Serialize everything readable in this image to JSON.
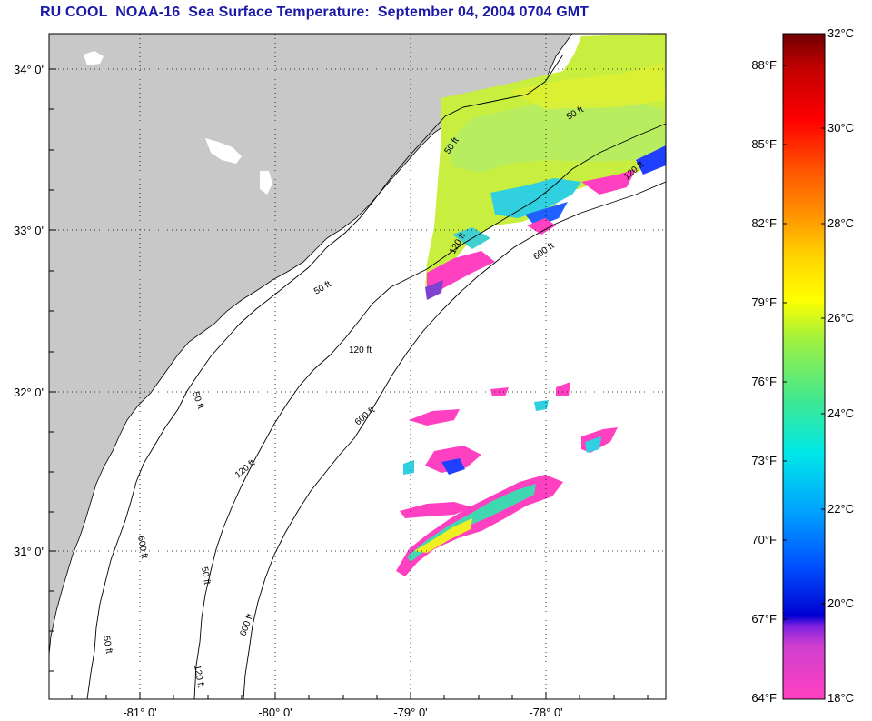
{
  "title": "RU COOL  NOAA-16  Sea Surface Temperature:  September 04, 2004 0704 GMT",
  "map": {
    "lat_labels": [
      "34° 0'",
      "33° 0'",
      "32° 0'",
      "31° 0'"
    ],
    "lon_labels": [
      "-81° 0'",
      "-80° 0'",
      "-79° 0'",
      "-78° 0'"
    ],
    "contour_labels": [
      "50 ft",
      "50 ft",
      "120 ft",
      "600 ft",
      "50 ft",
      "120 ft",
      "600 ft",
      "50 ft",
      "120 ft",
      "600 ft",
      "50 ft",
      "120 ft",
      "600 ft",
      "50 ft",
      "120 ft"
    ],
    "colors": {
      "land": "#c8c8c8",
      "ocean": "#ffffff",
      "coast": "#000000",
      "grid": "#000000"
    }
  },
  "colorbar": {
    "fahrenheit_labels": [
      "88°F",
      "85°F",
      "82°F",
      "79°F",
      "76°F",
      "73°F",
      "70°F",
      "67°F",
      "64°F"
    ],
    "celsius_labels": [
      "32°C",
      "30°C",
      "28°C",
      "26°C",
      "24°C",
      "22°C",
      "20°C",
      "18°C"
    ],
    "colors": [
      "#ff40c0",
      "#8030e0",
      "#0000ff",
      "#0090ff",
      "#00e0e0",
      "#40e080",
      "#c0f040",
      "#ffff00",
      "#ffc000",
      "#ff6000",
      "#ff0000",
      "#800000"
    ]
  }
}
